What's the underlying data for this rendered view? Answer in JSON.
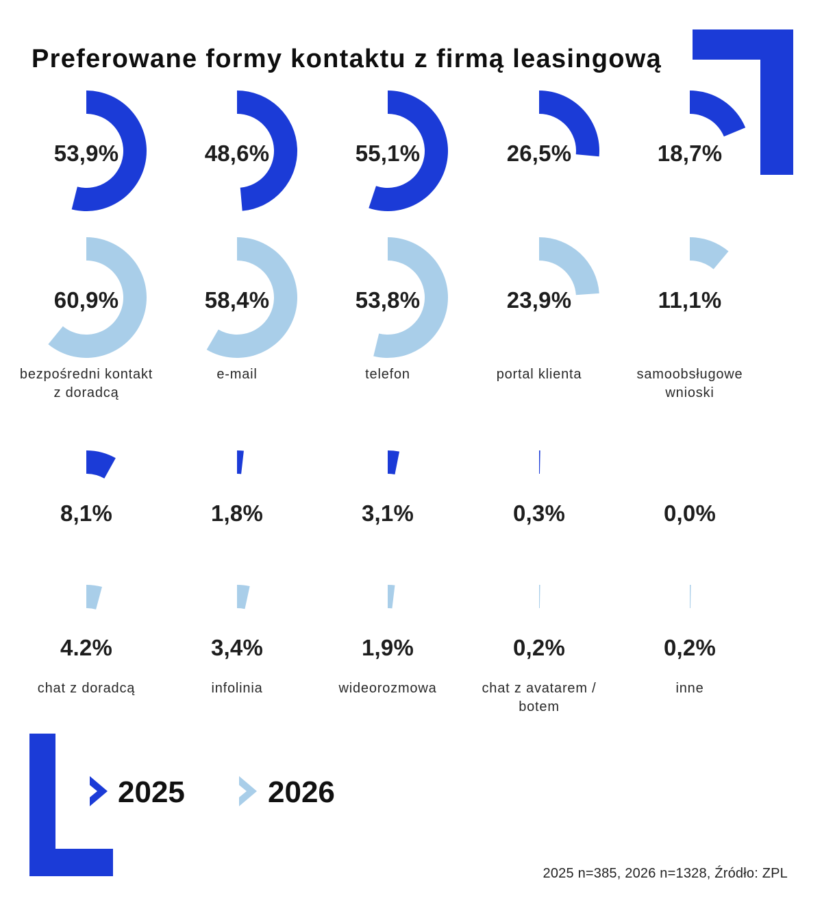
{
  "title": "Preferowane formy kontaktu z firmą leasingową",
  "colors": {
    "primary": "#1b3bd7",
    "secondary": "#a9cee9",
    "text": "#1d1d1d"
  },
  "legend": {
    "items": [
      {
        "label": "2025",
        "color": "#1b3bd7"
      },
      {
        "label": "2026",
        "color": "#a9cee9"
      }
    ]
  },
  "footnote": "2025 n=385, 2026 n=1328, Źródło: ZPL",
  "chart_data": {
    "type": "donut",
    "unit": "%",
    "legend_position": "bottom",
    "groups": [
      {
        "categories": [
          [
            "bezpośredni kontakt",
            "z doradcą"
          ],
          [
            "e-mail"
          ],
          [
            "telefon"
          ],
          [
            "portal klienta"
          ],
          [
            "samoobsługowe",
            "wnioski"
          ]
        ],
        "series": [
          {
            "name": "2025",
            "color": "#1b3bd7",
            "values": [
              53.9,
              48.6,
              55.1,
              26.5,
              18.7
            ],
            "labels": [
              "53,9%",
              "48,6%",
              "55,1%",
              "26,5%",
              "18,7%"
            ]
          },
          {
            "name": "2026",
            "color": "#a9cee9",
            "values": [
              60.9,
              58.4,
              53.8,
              23.9,
              11.1
            ],
            "labels": [
              "60,9%",
              "58,4%",
              "53,8%",
              "23,9%",
              "11,1%"
            ]
          }
        ]
      },
      {
        "categories": [
          [
            "chat z doradcą"
          ],
          [
            "infolinia"
          ],
          [
            "wideorozmowa"
          ],
          [
            "chat z avatarem /",
            "botem"
          ],
          [
            "inne"
          ]
        ],
        "series": [
          {
            "name": "2025",
            "color": "#1b3bd7",
            "values": [
              8.1,
              1.8,
              3.1,
              0.3,
              0.0
            ],
            "labels": [
              "8,1%",
              "1,8%",
              "3,1%",
              "0,3%",
              "0,0%"
            ]
          },
          {
            "name": "2026",
            "color": "#a9cee9",
            "values": [
              4.2,
              3.4,
              1.9,
              0.2,
              0.2
            ],
            "labels": [
              "4.2%",
              "3,4%",
              "1,9%",
              "0,2%",
              "0,2%"
            ]
          }
        ]
      }
    ]
  }
}
